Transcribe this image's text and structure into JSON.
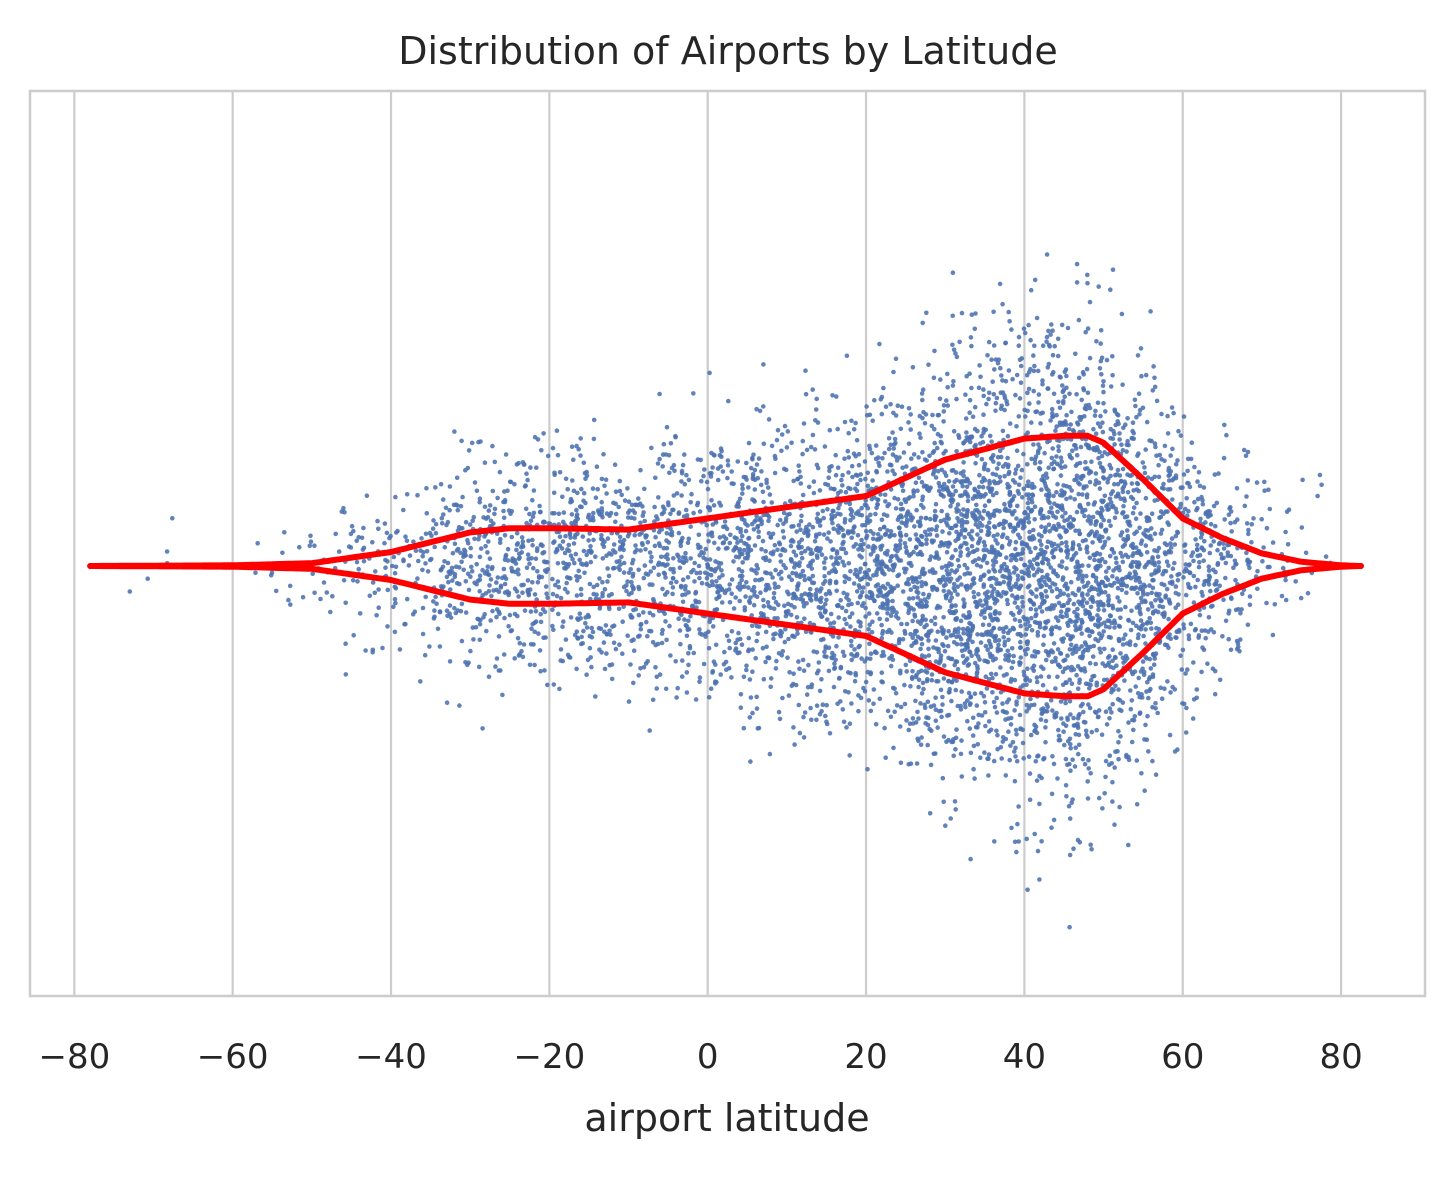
{
  "chart_data": {
    "type": "scatter",
    "title": "Distribution of Airports by Latitude",
    "xlabel": "airport latitude",
    "ylabel": "",
    "xlim": [
      -85.6,
      90.6
    ],
    "x_ticks": [
      -80,
      -60,
      -40,
      -20,
      0,
      20,
      40,
      60,
      80
    ],
    "x_tick_labels": [
      "−80",
      "−60",
      "−40",
      "−20",
      "0",
      "20",
      "40",
      "60",
      "80"
    ],
    "grid": "vertical",
    "legend": "none",
    "y_axis_ticks": "none",
    "scatter_points": {
      "description_unit": "airport latitude (degrees)",
      "estimated_count": 5800,
      "latitude_min": -77.8,
      "latitude_max": 82.5,
      "vertical_spread": "random jitter, wider where airports are denser"
    },
    "density_outline": {
      "kind": "kde",
      "latitude": [
        -78,
        -60,
        -50,
        -40,
        -30,
        -25,
        -20,
        -10,
        0,
        10,
        20,
        30,
        40,
        45,
        48,
        50,
        55,
        60,
        65,
        70,
        75,
        80,
        82.5
      ],
      "half_width": [
        0.0,
        0.005,
        0.02,
        0.1,
        0.24,
        0.27,
        0.27,
        0.26,
        0.34,
        0.42,
        0.5,
        0.76,
        0.91,
        0.93,
        0.93,
        0.88,
        0.62,
        0.34,
        0.2,
        0.09,
        0.03,
        0.005,
        0.0
      ]
    },
    "colors": {
      "points": "#4c72b0",
      "density_line": "#ff0000",
      "grid": "#cccccc",
      "frame": "#cccccc",
      "text": "#262626"
    }
  }
}
